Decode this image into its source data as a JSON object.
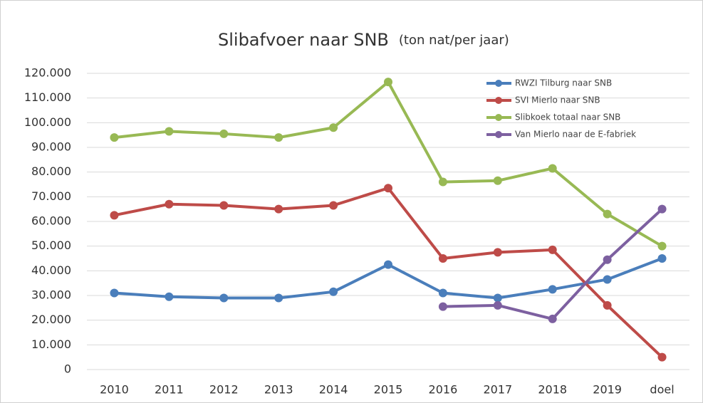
{
  "chart_data": {
    "type": "line",
    "title": "Slibafvoer naar SNB",
    "subtitle": "(ton nat/per jaar)",
    "categories": [
      "2010",
      "2011",
      "2012",
      "2013",
      "2014",
      "2015",
      "2016",
      "2017",
      "2018",
      "2019",
      "doel"
    ],
    "series": [
      {
        "name": "RWZI Tilburg naar SNB",
        "color": "#4a7ebb",
        "values": [
          31000,
          29500,
          29000,
          29000,
          31500,
          42500,
          31000,
          29000,
          32500,
          36500,
          45000
        ]
      },
      {
        "name": "SVI Mierlo naar SNB",
        "color": "#be4b48",
        "values": [
          62500,
          67000,
          66500,
          65000,
          66500,
          73500,
          45000,
          47500,
          48500,
          26000,
          5000
        ]
      },
      {
        "name": "Slibkoek totaal naar SNB",
        "color": "#98b954",
        "values": [
          94000,
          96500,
          95500,
          94000,
          98000,
          116500,
          76000,
          76500,
          81500,
          63000,
          50000
        ]
      },
      {
        "name": "Van Mierlo naar de E-fabriek",
        "color": "#7d60a0",
        "values": [
          null,
          null,
          null,
          null,
          null,
          null,
          25500,
          26000,
          20500,
          44500,
          65000
        ]
      }
    ],
    "ylim": [
      0,
      120000
    ],
    "yticks": [
      0,
      {
        "value": 10000,
        "label": "10.000"
      },
      {
        "value": 20000,
        "label": "20.000"
      },
      {
        "value": 30000,
        "label": "30.000"
      },
      {
        "value": 40000,
        "label": "40.000"
      },
      {
        "value": 50000,
        "label": "50.000"
      },
      {
        "value": 60000,
        "label": "60.000"
      },
      {
        "value": 70000,
        "label": "70.000"
      },
      {
        "value": 80000,
        "label": "80.000"
      },
      {
        "value": 90000,
        "label": "90.000"
      },
      {
        "value": 100000,
        "label": "100.000"
      },
      {
        "value": 110000,
        "label": "110.000"
      },
      {
        "value": 120000,
        "label": "120.000"
      }
    ],
    "grid": true,
    "legend": "top-right"
  }
}
